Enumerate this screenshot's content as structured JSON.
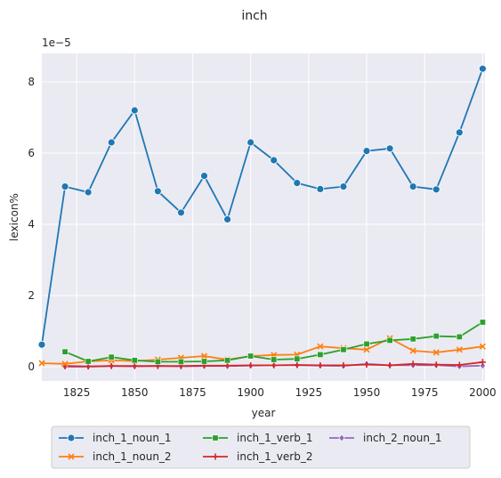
{
  "chart_data": {
    "type": "line",
    "title": "inch",
    "xlabel": "year",
    "ylabel": "lexicon%",
    "y_offset_label": "1e−5",
    "xlim": [
      1810,
      2001
    ],
    "ylim": [
      -0.4,
      8.8
    ],
    "x_ticks": [
      1825,
      1850,
      1875,
      1900,
      1925,
      1950,
      1975,
      2000
    ],
    "y_ticks": [
      0,
      2,
      4,
      6,
      8
    ],
    "grid": true,
    "legend_position": "bottom",
    "series": [
      {
        "name": "inch_1_noun_1",
        "color": "#1f77b4",
        "marker": "circle",
        "points": [
          [
            1810,
            0.62
          ],
          [
            1820,
            5.06
          ],
          [
            1830,
            4.9
          ],
          [
            1840,
            6.3
          ],
          [
            1850,
            7.2
          ],
          [
            1860,
            4.93
          ],
          [
            1870,
            4.33
          ],
          [
            1880,
            5.36
          ],
          [
            1890,
            4.14
          ],
          [
            1900,
            6.3
          ],
          [
            1910,
            5.8
          ],
          [
            1920,
            5.16
          ],
          [
            1930,
            4.99
          ],
          [
            1940,
            5.06
          ],
          [
            1950,
            6.06
          ],
          [
            1960,
            6.13
          ],
          [
            1970,
            5.06
          ],
          [
            1980,
            4.98
          ],
          [
            1990,
            6.58
          ],
          [
            2000,
            8.37
          ]
        ]
      },
      {
        "name": "inch_1_noun_2",
        "color": "#ff7f0e",
        "marker": "x",
        "points": [
          [
            1810,
            0.1
          ],
          [
            1820,
            0.08
          ],
          [
            1830,
            0.15
          ],
          [
            1840,
            0.18
          ],
          [
            1850,
            0.16
          ],
          [
            1860,
            0.2
          ],
          [
            1870,
            0.25
          ],
          [
            1880,
            0.3
          ],
          [
            1890,
            0.2
          ],
          [
            1900,
            0.3
          ],
          [
            1910,
            0.33
          ],
          [
            1920,
            0.34
          ],
          [
            1930,
            0.57
          ],
          [
            1940,
            0.52
          ],
          [
            1950,
            0.48
          ],
          [
            1960,
            0.8
          ],
          [
            1970,
            0.45
          ],
          [
            1980,
            0.4
          ],
          [
            1990,
            0.48
          ],
          [
            2000,
            0.57
          ]
        ]
      },
      {
        "name": "inch_1_verb_1",
        "color": "#2ca02c",
        "marker": "square",
        "points": [
          [
            1820,
            0.42
          ],
          [
            1830,
            0.15
          ],
          [
            1840,
            0.27
          ],
          [
            1850,
            0.18
          ],
          [
            1860,
            0.14
          ],
          [
            1870,
            0.14
          ],
          [
            1880,
            0.15
          ],
          [
            1890,
            0.18
          ],
          [
            1900,
            0.3
          ],
          [
            1910,
            0.2
          ],
          [
            1920,
            0.22
          ],
          [
            1930,
            0.34
          ],
          [
            1940,
            0.48
          ],
          [
            1950,
            0.64
          ],
          [
            1960,
            0.74
          ],
          [
            1970,
            0.78
          ],
          [
            1980,
            0.86
          ],
          [
            1990,
            0.84
          ],
          [
            2000,
            1.25
          ]
        ]
      },
      {
        "name": "inch_1_verb_2",
        "color": "#d62728",
        "marker": "plus",
        "points": [
          [
            1820,
            0.02
          ],
          [
            1830,
            0.01
          ],
          [
            1840,
            0.02
          ],
          [
            1850,
            0.02
          ],
          [
            1860,
            0.02
          ],
          [
            1870,
            0.02
          ],
          [
            1880,
            0.03
          ],
          [
            1890,
            0.03
          ],
          [
            1900,
            0.04
          ],
          [
            1910,
            0.04
          ],
          [
            1920,
            0.05
          ],
          [
            1930,
            0.04
          ],
          [
            1940,
            0.04
          ],
          [
            1950,
            0.06
          ],
          [
            1960,
            0.04
          ],
          [
            1970,
            0.08
          ],
          [
            1980,
            0.06
          ],
          [
            1990,
            0.05
          ],
          [
            2000,
            0.13
          ]
        ]
      },
      {
        "name": "inch_2_noun_1",
        "color": "#9467bd",
        "marker": "diamond",
        "points": [
          [
            1820,
            0.0
          ],
          [
            1830,
            0.0
          ],
          [
            1840,
            0.02
          ],
          [
            1850,
            0.01
          ],
          [
            1860,
            0.02
          ],
          [
            1870,
            0.01
          ],
          [
            1880,
            0.02
          ],
          [
            1890,
            0.02
          ],
          [
            1900,
            0.03
          ],
          [
            1910,
            0.04
          ],
          [
            1920,
            0.04
          ],
          [
            1930,
            0.03
          ],
          [
            1940,
            0.02
          ],
          [
            1950,
            0.08
          ],
          [
            1960,
            0.04
          ],
          [
            1970,
            0.04
          ],
          [
            1980,
            0.04
          ],
          [
            1990,
            0.01
          ],
          [
            2000,
            0.03
          ]
        ]
      }
    ]
  }
}
